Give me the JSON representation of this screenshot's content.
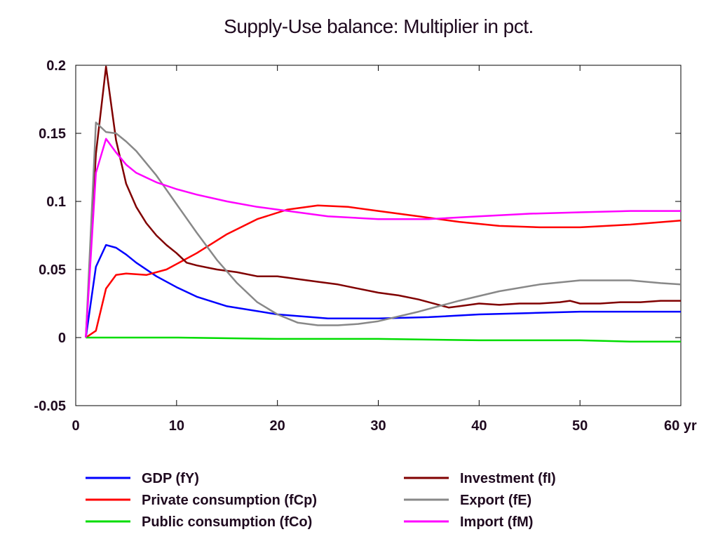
{
  "chart_data": {
    "type": "line",
    "title": "Supply-Use balance: Multiplier in pct.",
    "xlabel": "",
    "ylabel": "",
    "xlim": [
      0,
      60
    ],
    "ylim": [
      -0.05,
      0.2
    ],
    "x_ticks": [
      0,
      10,
      20,
      30,
      40,
      50,
      60
    ],
    "x_tick_labels": [
      "0",
      "10",
      "20",
      "30",
      "40",
      "50",
      "60 yr"
    ],
    "y_ticks": [
      -0.05,
      0,
      0.05,
      0.1,
      0.15,
      0.2
    ],
    "y_tick_labels": [
      "-0.05",
      "0",
      "0.05",
      "0.1",
      "0.15",
      "0.2"
    ],
    "grid": false,
    "legend_position": "bottom",
    "series": [
      {
        "name": "GDP (fY)",
        "color": "#0000ff",
        "x": [
          1,
          2,
          3,
          4,
          5,
          6,
          8,
          10,
          12,
          15,
          20,
          25,
          30,
          35,
          40,
          45,
          50,
          55,
          60
        ],
        "y": [
          0,
          0.052,
          0.068,
          0.066,
          0.061,
          0.055,
          0.045,
          0.037,
          0.03,
          0.023,
          0.017,
          0.014,
          0.014,
          0.015,
          0.017,
          0.018,
          0.019,
          0.019,
          0.019
        ]
      },
      {
        "name": "Private consumption (fCp)",
        "color": "#ff0000",
        "x": [
          1,
          2,
          3,
          4,
          5,
          7,
          9,
          12,
          15,
          18,
          21,
          24,
          27,
          30,
          34,
          38,
          42,
          46,
          50,
          55,
          60
        ],
        "y": [
          0,
          0.005,
          0.036,
          0.046,
          0.047,
          0.046,
          0.05,
          0.062,
          0.076,
          0.087,
          0.094,
          0.097,
          0.096,
          0.093,
          0.089,
          0.085,
          0.082,
          0.081,
          0.081,
          0.083,
          0.086
        ]
      },
      {
        "name": "Public consumption (fCo)",
        "color": "#00dd00",
        "x": [
          1,
          10,
          20,
          30,
          40,
          50,
          55,
          60
        ],
        "y": [
          0,
          0,
          -0.001,
          -0.001,
          -0.002,
          -0.002,
          -0.003,
          -0.003
        ]
      },
      {
        "name": "Investment (fI)",
        "color": "#800000",
        "x": [
          1,
          2,
          3,
          4,
          5,
          6,
          7,
          8,
          9,
          10,
          11,
          12,
          14,
          16,
          18,
          20,
          21,
          22,
          24,
          26,
          28,
          30,
          32,
          34,
          36,
          37,
          38,
          40,
          42,
          44,
          46,
          48,
          49,
          50,
          52,
          54,
          56,
          58,
          60
        ],
        "y": [
          0,
          0.135,
          0.199,
          0.145,
          0.113,
          0.096,
          0.084,
          0.075,
          0.068,
          0.062,
          0.055,
          0.053,
          0.05,
          0.048,
          0.045,
          0.045,
          0.044,
          0.043,
          0.041,
          0.039,
          0.036,
          0.033,
          0.031,
          0.028,
          0.024,
          0.022,
          0.023,
          0.025,
          0.024,
          0.025,
          0.025,
          0.026,
          0.027,
          0.025,
          0.025,
          0.026,
          0.026,
          0.027,
          0.027
        ]
      },
      {
        "name": "Export (fE)",
        "color": "#888888",
        "x": [
          1,
          2,
          3,
          4,
          5,
          6,
          8,
          10,
          12,
          14,
          16,
          18,
          20,
          22,
          24,
          26,
          28,
          30,
          34,
          38,
          42,
          46,
          50,
          52,
          55,
          58,
          60
        ],
        "y": [
          0,
          0.158,
          0.151,
          0.15,
          0.144,
          0.137,
          0.119,
          0.098,
          0.077,
          0.057,
          0.04,
          0.026,
          0.017,
          0.011,
          0.009,
          0.009,
          0.01,
          0.012,
          0.019,
          0.027,
          0.034,
          0.039,
          0.042,
          0.042,
          0.042,
          0.04,
          0.039
        ]
      },
      {
        "name": "Import (fM)",
        "color": "#ff00ff",
        "x": [
          1,
          2,
          3,
          4,
          5,
          6,
          8,
          10,
          12,
          15,
          18,
          20,
          25,
          30,
          35,
          40,
          45,
          50,
          55,
          60
        ],
        "y": [
          0,
          0.121,
          0.146,
          0.136,
          0.127,
          0.121,
          0.114,
          0.109,
          0.105,
          0.1,
          0.096,
          0.094,
          0.089,
          0.087,
          0.087,
          0.089,
          0.091,
          0.092,
          0.093,
          0.093
        ]
      }
    ]
  }
}
